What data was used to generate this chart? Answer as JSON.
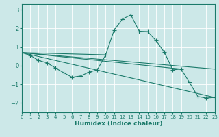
{
  "xlabel": "Humidex (Indice chaleur)",
  "bg_color": "#cce8e8",
  "grid_color": "#ffffff",
  "line_color": "#1a7a6a",
  "xlim": [
    0,
    23
  ],
  "ylim": [
    -2.5,
    3.3
  ],
  "yticks": [
    -2,
    -1,
    0,
    1,
    2,
    3
  ],
  "xticks": [
    0,
    1,
    2,
    3,
    4,
    5,
    6,
    7,
    8,
    9,
    10,
    11,
    12,
    13,
    14,
    15,
    16,
    17,
    18,
    19,
    20,
    21,
    22,
    23
  ],
  "main_x": [
    0,
    1,
    2,
    3,
    4,
    5,
    6,
    7,
    8,
    9,
    10,
    11,
    12,
    13,
    14,
    15,
    16,
    17,
    18,
    19,
    20,
    21,
    22,
    23
  ],
  "main_y": [
    0.7,
    0.55,
    0.28,
    0.15,
    -0.12,
    -0.38,
    -0.62,
    -0.55,
    -0.35,
    -0.22,
    0.58,
    1.9,
    2.5,
    2.72,
    1.85,
    1.83,
    1.35,
    0.72,
    -0.22,
    -0.18,
    -0.9,
    -1.65,
    -1.73,
    -1.7
  ],
  "line2_x": [
    0,
    23
  ],
  "line2_y": [
    0.7,
    -0.18
  ],
  "line3_x": [
    0,
    23
  ],
  "line3_y": [
    0.7,
    -1.7
  ],
  "line4_x": [
    0,
    19
  ],
  "line4_y": [
    0.7,
    -0.18
  ],
  "line5_x": [
    0,
    10
  ],
  "line5_y": [
    0.7,
    0.58
  ]
}
